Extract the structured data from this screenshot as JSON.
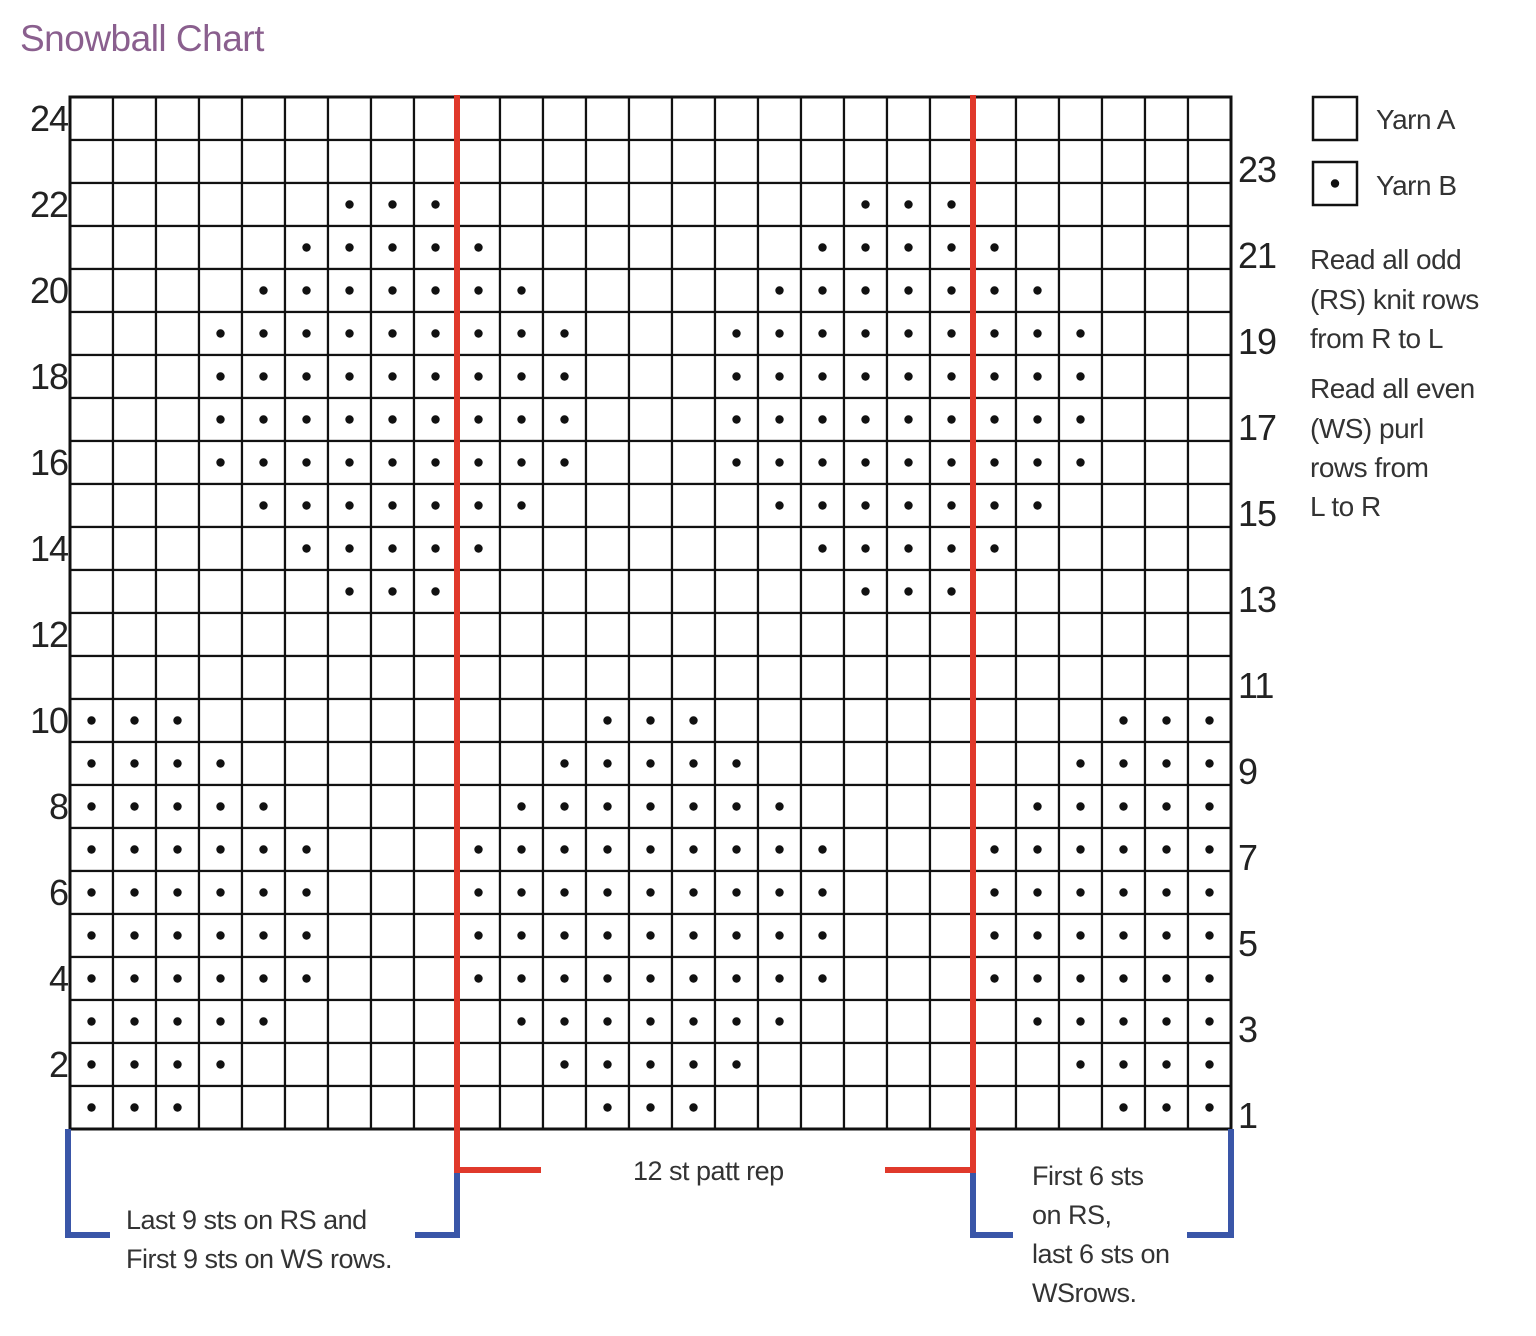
{
  "title": "Snowball Chart",
  "chart_data": {
    "type": "knitting-chart",
    "columns": 27,
    "rows_count": 24,
    "symbol_key": {
      "-": "Yarn A",
      ".": "Yarn B"
    },
    "rows_top_to_bottom": [
      "---------------------------",
      "---------------------------",
      "------...---------...------",
      "-----.....-------.....-----",
      "----.......-----.......----",
      "---.........---.........---",
      "---.........---.........---",
      "---.........---.........---",
      "---.........---.........---",
      "----.......-----.......----",
      "-----.....-------.....-----",
      "------...---------...------",
      "---------------------------",
      "---------------------------",
      "...---------...---------...",
      "....-------.....-------....",
      ".....-----.......-----.....",
      "......---.........---......",
      "......---.........---......",
      "......---.........---......",
      "......---.........---......",
      ".....-----.......-----.....",
      "....-------.....-------....",
      "...---------...---------..."
    ],
    "left_row_labels": [
      "24",
      "22",
      "20",
      "18",
      "16",
      "14",
      "12",
      "10",
      "8",
      "6",
      "4",
      "2"
    ],
    "right_row_labels": [
      "23",
      "21",
      "19",
      "17",
      "15",
      "13",
      "11",
      "9",
      "7",
      "5",
      "3",
      "1"
    ],
    "repeat_columns": [
      10,
      21
    ],
    "colors": {
      "grid": "#111111",
      "repeat_line": "#e0392b",
      "bracket": "#3a56a8",
      "title": "#8a5f8e"
    }
  },
  "legend": {
    "yarn_a": "Yarn A",
    "yarn_b": "Yarn B"
  },
  "instructions": {
    "odd": [
      "Read all odd",
      "(RS) knit rows",
      "from R to L"
    ],
    "even": [
      "Read all even",
      "(WS) purl",
      "rows from",
      "L to R"
    ]
  },
  "annotations": {
    "repeat": "12 st patt rep",
    "left": [
      "Last 9 sts on RS and",
      "First 9 sts on WS rows."
    ],
    "right": [
      "First 6 sts",
      "on RS,",
      "last 6 sts on",
      "WSrows."
    ]
  }
}
